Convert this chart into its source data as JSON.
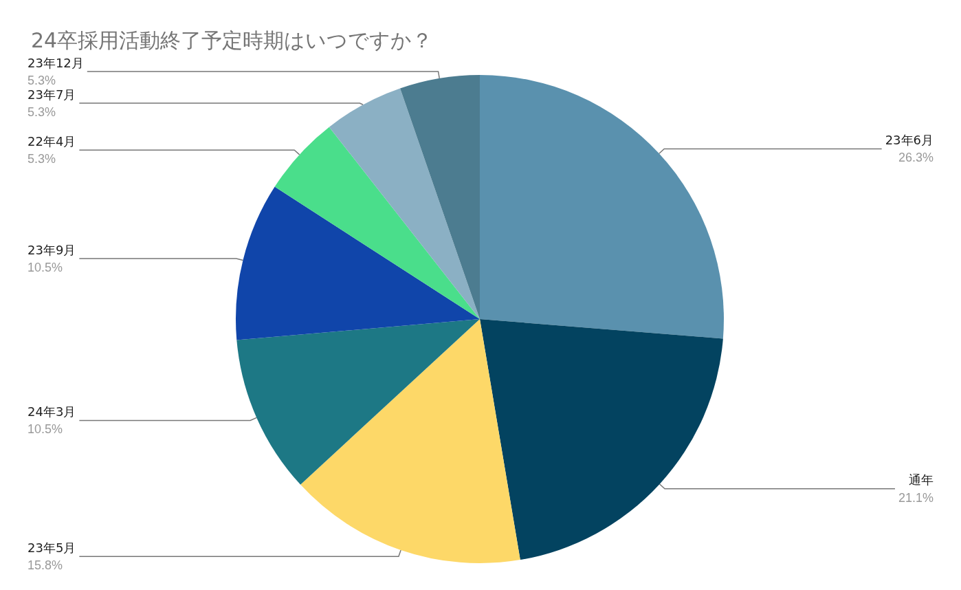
{
  "chart_data": {
    "type": "pie",
    "title": "24卒採用活動終了予定時期はいつですか？",
    "categories": [
      "23年6月",
      "通年",
      "23年5月",
      "24年3月",
      "23年9月",
      "22年4月",
      "23年7月",
      "23年12月"
    ],
    "values": [
      26.3,
      21.1,
      15.8,
      10.5,
      10.5,
      5.3,
      5.3,
      5.3
    ],
    "value_labels": [
      "26.3%",
      "21.1%",
      "15.8%",
      "10.5%",
      "10.5%",
      "5.3%",
      "5.3%",
      "5.3%"
    ],
    "colors": [
      "#5a91ae",
      "#034360",
      "#fdd868",
      "#1d7885",
      "#1045aa",
      "#4ade8b",
      "#8bb0c4",
      "#4c7c90"
    ],
    "legend": false
  }
}
